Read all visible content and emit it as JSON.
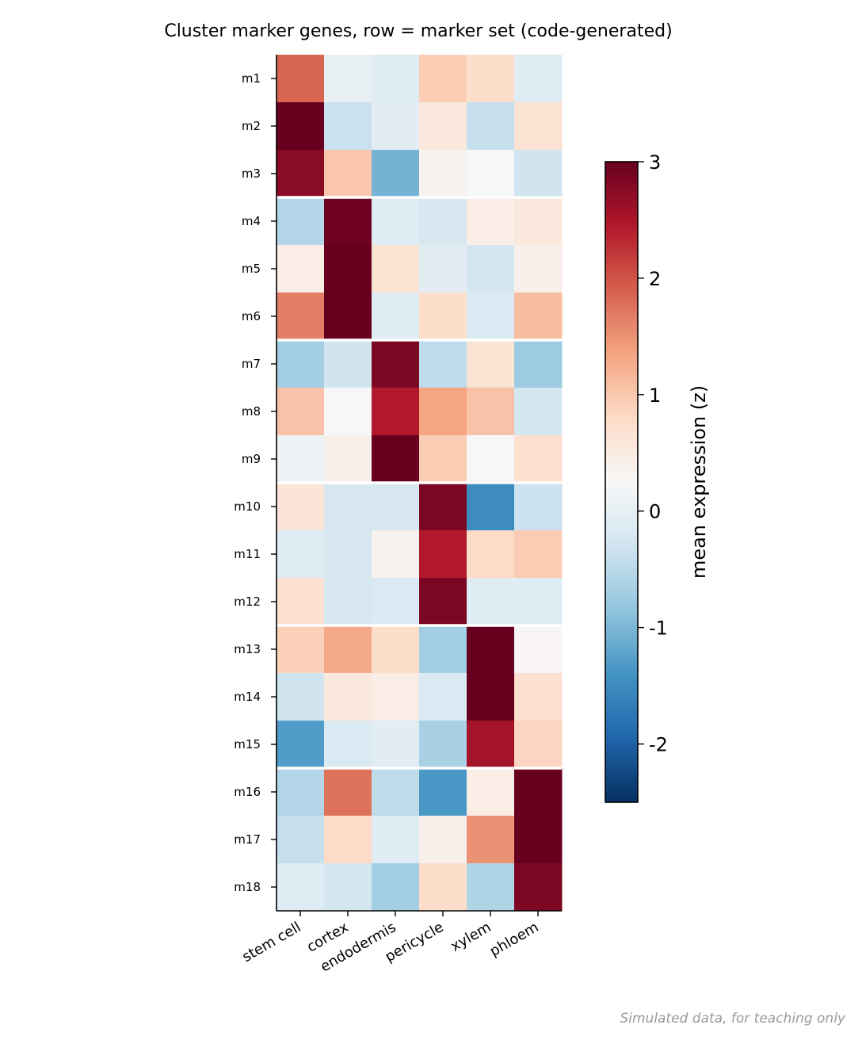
{
  "chart_data": {
    "type": "heatmap",
    "title": "Cluster marker genes, row = marker set (code-generated)",
    "rows": [
      "m1",
      "m2",
      "m3",
      "m4",
      "m5",
      "m6",
      "m7",
      "m8",
      "m9",
      "m10",
      "m11",
      "m12",
      "m13",
      "m14",
      "m15",
      "m16",
      "m17",
      "m18"
    ],
    "columns": [
      "stem cell",
      "cortex",
      "endodermis",
      "pericycle",
      "xylem",
      "phloem"
    ],
    "values": [
      [
        1.85,
        0.05,
        -0.1,
        0.95,
        0.75,
        -0.1
      ],
      [
        3.0,
        -0.35,
        -0.05,
        0.55,
        -0.4,
        0.65
      ],
      [
        2.75,
        1.0,
        -1.05,
        0.35,
        0.25,
        -0.3
      ],
      [
        -0.55,
        2.95,
        -0.1,
        -0.2,
        0.45,
        0.55
      ],
      [
        0.45,
        3.0,
        0.65,
        -0.05,
        -0.25,
        0.4
      ],
      [
        1.65,
        3.0,
        -0.1,
        0.75,
        -0.15,
        1.1
      ],
      [
        -0.7,
        -0.3,
        2.85,
        -0.45,
        0.65,
        -0.75
      ],
      [
        1.05,
        0.25,
        2.45,
        1.35,
        1.05,
        -0.25
      ],
      [
        0.1,
        0.4,
        3.0,
        0.95,
        0.25,
        0.7
      ],
      [
        0.6,
        -0.2,
        -0.2,
        2.85,
        -1.5,
        -0.35
      ],
      [
        -0.1,
        -0.2,
        0.35,
        2.45,
        0.8,
        0.95
      ],
      [
        0.7,
        -0.2,
        -0.15,
        2.85,
        -0.1,
        -0.1
      ],
      [
        0.9,
        1.3,
        0.75,
        -0.7,
        3.0,
        0.3
      ],
      [
        -0.3,
        0.55,
        0.45,
        -0.15,
        3.0,
        0.7
      ],
      [
        -1.3,
        -0.15,
        -0.05,
        -0.65,
        2.55,
        0.85
      ],
      [
        -0.55,
        1.75,
        -0.45,
        -1.35,
        0.45,
        3.0
      ],
      [
        -0.4,
        0.8,
        -0.1,
        0.4,
        1.5,
        3.0
      ],
      [
        -0.1,
        -0.25,
        -0.7,
        0.75,
        -0.6,
        2.85
      ]
    ],
    "group_boundaries_after_row": [
      3,
      6,
      9,
      12,
      15
    ],
    "colorbar": {
      "label": "mean expression (z)",
      "range": [
        -2.5,
        3
      ],
      "ticks": [
        3,
        2,
        1,
        0,
        -1,
        -2
      ],
      "tick_labels": [
        "3",
        "2",
        "1",
        "0",
        "-1",
        "-2"
      ],
      "colormap": "RdBu_r"
    }
  },
  "caption": "Simulated data, for teaching only"
}
